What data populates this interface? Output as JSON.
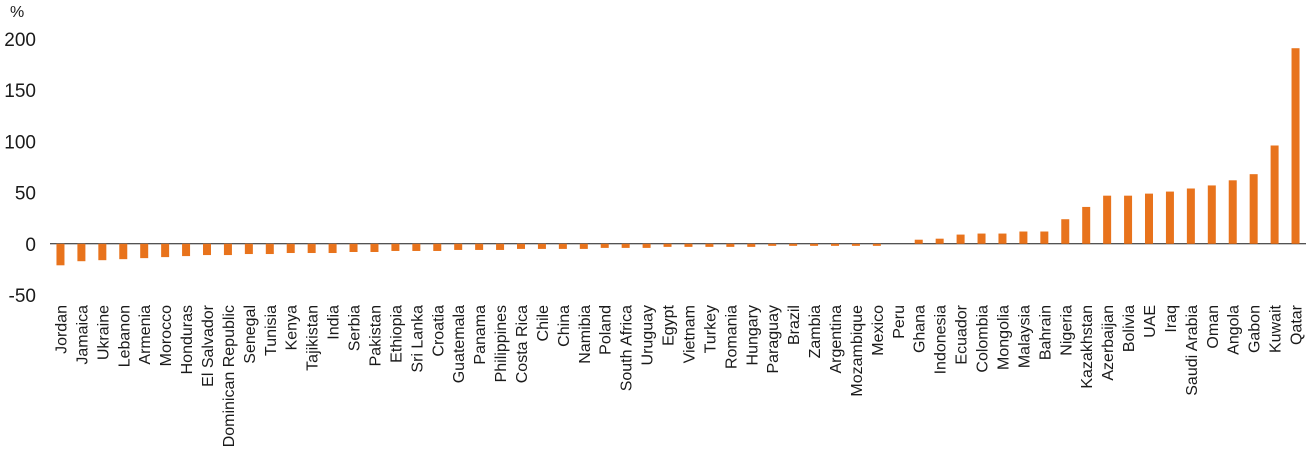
{
  "chart_data": {
    "type": "bar",
    "ylabel": "%",
    "ylim": [
      -50,
      200
    ],
    "yticks": [
      "200",
      "150",
      "100",
      "50",
      "0",
      "-50"
    ],
    "grid": false,
    "legend": "none",
    "bar_color": "#E8731C",
    "categories": [
      "Jordan",
      "Jamaica",
      "Ukraine",
      "Lebanon",
      "Armenia",
      "Morocco",
      "Honduras",
      "El Salvador",
      "Dominican Republic",
      "Senegal",
      "Tunisia",
      "Kenya",
      "Tajikistan",
      "India",
      "Serbia",
      "Pakistan",
      "Ethiopia",
      "Sri Lanka",
      "Croatia",
      "Guatemala",
      "Panama",
      "Philippines",
      "Costa Rica",
      "Chile",
      "China",
      "Namibia",
      "Poland",
      "South Africa",
      "Uruguay",
      "Egypt",
      "Vietnam",
      "Turkey",
      "Romania",
      "Hungary",
      "Paraguay",
      "Brazil",
      "Zambia",
      "Argentina",
      "Mozambique",
      "Mexico",
      "Peru",
      "Ghana",
      "Indonesia",
      "Ecuador",
      "Colombia",
      "Mongolia",
      "Malaysia",
      "Bahrain",
      "Nigeria",
      "Kazakhstan",
      "Azerbaijan",
      "Bolivia",
      "UAE",
      "Iraq",
      "Saudi Arabia",
      "Oman",
      "Angola",
      "Gabon",
      "Kuwait",
      "Qatar"
    ],
    "values": [
      -21,
      -17,
      -16,
      -15,
      -14,
      -13,
      -12,
      -11,
      -11,
      -10,
      -10,
      -9,
      -9,
      -9,
      -8,
      -8,
      -7,
      -7,
      -7,
      -6,
      -6,
      -6,
      -5,
      -5,
      -5,
      -5,
      -4,
      -4,
      -4,
      -3,
      -3,
      -3,
      -3,
      -3,
      -2,
      -2,
      -2,
      -2,
      -2,
      -2,
      0,
      4,
      5,
      9,
      10,
      10,
      12,
      12,
      24,
      36,
      47,
      47,
      49,
      51,
      54,
      57,
      62,
      68,
      96,
      191
    ]
  }
}
